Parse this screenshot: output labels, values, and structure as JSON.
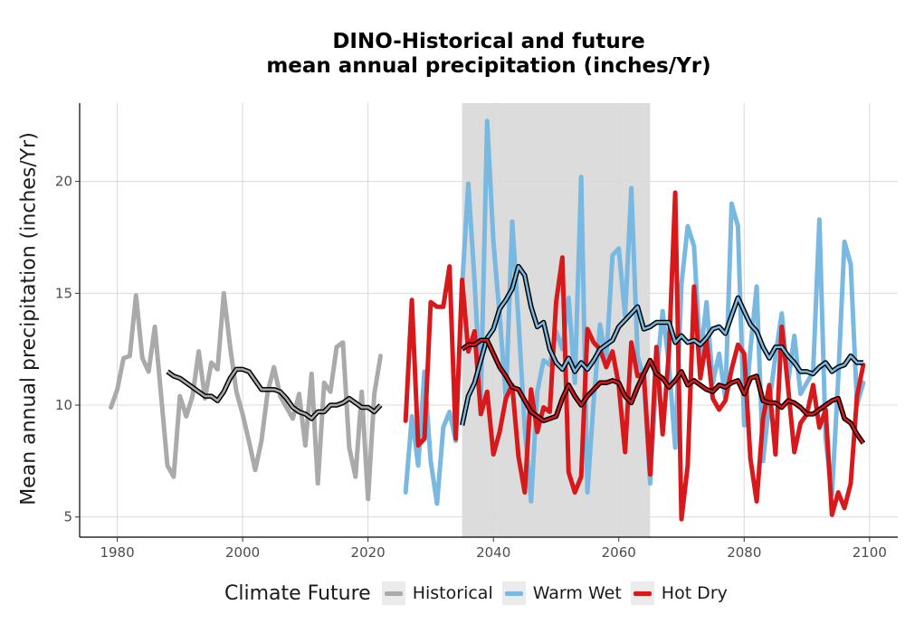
{
  "chart_data": {
    "type": "line",
    "title_line1": "DINO-Historical and future",
    "title_line2": "mean annual precipitation (inches/Yr)",
    "ylabel": "Mean annual precipitation (inches/Yr)",
    "xlim": [
      1974,
      2104.5
    ],
    "ylim": [
      4.1,
      23.5
    ],
    "x_ticks": [
      1980,
      2000,
      2020,
      2040,
      2060,
      2080,
      2100
    ],
    "y_ticks": [
      5,
      10,
      15,
      20
    ],
    "shaded_period": [
      2035,
      2065
    ],
    "grid": true,
    "legend": {
      "title": "Climate Future",
      "position": "bottom",
      "entries": [
        {
          "label": "Historical",
          "color": "#aaaaaa"
        },
        {
          "label": "Warm Wet",
          "color": "#79b8e0"
        },
        {
          "label": "Hot Dry",
          "color": "#d7191c"
        }
      ]
    },
    "series": [
      {
        "legend": "Historical",
        "color": "#aaaaaa",
        "x": [
          1979,
          1980,
          1981,
          1982,
          1983,
          1984,
          1985,
          1986,
          1987,
          1988,
          1989,
          1990,
          1991,
          1992,
          1993,
          1994,
          1995,
          1996,
          1997,
          1998,
          1999,
          2000,
          2001,
          2002,
          2003,
          2004,
          2005,
          2006,
          2007,
          2008,
          2009,
          2010,
          2011,
          2012,
          2013,
          2014,
          2015,
          2016,
          2017,
          2018,
          2019,
          2020,
          2021,
          2022
        ],
        "values": [
          9.9,
          10.7,
          12.1,
          12.2,
          14.9,
          12.1,
          11.5,
          13.5,
          10.4,
          7.3,
          6.8,
          10.4,
          9.5,
          10.4,
          12.4,
          10.3,
          11.9,
          11.6,
          15.0,
          12.6,
          10.6,
          9.6,
          8.4,
          7.1,
          8.4,
          10.6,
          11.7,
          10.4,
          9.9,
          9.4,
          10.5,
          8.2,
          11.4,
          6.5,
          11.0,
          10.6,
          12.6,
          12.8,
          8.1,
          6.8,
          10.6,
          5.8,
          10.5,
          12.2
        ],
        "smooth_x": [
          1988,
          1989,
          1990,
          1991,
          1992,
          1993,
          1994,
          1995,
          1996,
          1997,
          1998,
          1999,
          2000,
          2001,
          2002,
          2003,
          2004,
          2005,
          2006,
          2007,
          2008,
          2009,
          2010,
          2011,
          2012,
          2013,
          2014,
          2015,
          2016,
          2017,
          2018,
          2019,
          2020,
          2021,
          2022
        ],
        "smooth_values": [
          11.5,
          11.3,
          11.2,
          11.0,
          10.8,
          10.6,
          10.4,
          10.4,
          10.2,
          10.6,
          11.2,
          11.6,
          11.6,
          11.5,
          11.1,
          10.7,
          10.7,
          10.7,
          10.6,
          10.3,
          9.9,
          9.7,
          9.6,
          9.4,
          9.7,
          9.7,
          10.0,
          10.0,
          10.1,
          10.3,
          10.1,
          9.9,
          9.9,
          9.7,
          10.0
        ]
      },
      {
        "legend": "Warm Wet",
        "color": "#79b8e0",
        "x": [
          2026,
          2027,
          2028,
          2029,
          2030,
          2031,
          2032,
          2033,
          2034,
          2035,
          2036,
          2037,
          2038,
          2039,
          2040,
          2041,
          2042,
          2043,
          2044,
          2045,
          2046,
          2047,
          2048,
          2049,
          2050,
          2051,
          2052,
          2053,
          2054,
          2055,
          2056,
          2057,
          2058,
          2059,
          2060,
          2061,
          2062,
          2063,
          2064,
          2065,
          2066,
          2067,
          2068,
          2069,
          2070,
          2071,
          2072,
          2073,
          2074,
          2075,
          2076,
          2077,
          2078,
          2079,
          2080,
          2081,
          2082,
          2083,
          2084,
          2085,
          2086,
          2087,
          2088,
          2089,
          2090,
          2091,
          2092,
          2093,
          2094,
          2095,
          2096,
          2097,
          2098,
          2099
        ],
        "values": [
          6.1,
          9.5,
          7.3,
          11.5,
          7.5,
          5.6,
          9.0,
          9.7,
          8.4,
          15.3,
          19.9,
          15.5,
          10.3,
          22.7,
          17.3,
          14.0,
          10.3,
          18.2,
          13.8,
          9.0,
          5.7,
          10.6,
          12.0,
          11.8,
          13.3,
          12.5,
          14.8,
          11.0,
          20.2,
          6.1,
          10.2,
          13.6,
          12.0,
          16.7,
          17.0,
          14.0,
          19.7,
          12.2,
          11.2,
          6.5,
          11.3,
          14.2,
          11.8,
          8.1,
          15.4,
          18.0,
          17.1,
          12.1,
          14.6,
          11.0,
          12.3,
          10.3,
          19.0,
          18.0,
          9.1,
          12.5,
          15.3,
          7.5,
          10.1,
          12.2,
          14.1,
          11.0,
          13.1,
          10.5,
          11.0,
          11.5,
          18.3,
          8.5,
          6.0,
          11.2,
          17.3,
          16.3,
          10.0,
          11.0
        ],
        "smooth_x": [
          2035,
          2036,
          2037,
          2038,
          2039,
          2040,
          2041,
          2042,
          2043,
          2044,
          2045,
          2046,
          2047,
          2048,
          2049,
          2050,
          2051,
          2052,
          2053,
          2054,
          2055,
          2056,
          2057,
          2058,
          2059,
          2060,
          2061,
          2062,
          2063,
          2064,
          2065,
          2066,
          2067,
          2068,
          2069,
          2070,
          2071,
          2072,
          2073,
          2074,
          2075,
          2076,
          2077,
          2078,
          2079,
          2080,
          2081,
          2082,
          2083,
          2084,
          2085,
          2086,
          2087,
          2088,
          2089,
          2090,
          2091,
          2092,
          2093,
          2094,
          2095,
          2096,
          2097,
          2098,
          2099
        ],
        "smooth_values": [
          9.1,
          10.4,
          11.0,
          12.0,
          13.0,
          13.4,
          14.3,
          14.7,
          15.2,
          16.2,
          15.8,
          14.4,
          13.5,
          13.7,
          12.5,
          11.9,
          11.6,
          12.1,
          11.5,
          11.9,
          11.6,
          12.0,
          12.5,
          12.7,
          12.9,
          13.5,
          13.8,
          14.1,
          14.4,
          13.4,
          13.5,
          13.7,
          13.7,
          13.7,
          12.8,
          13.1,
          12.8,
          12.9,
          12.7,
          13.0,
          13.4,
          13.5,
          13.2,
          14.0,
          14.8,
          14.2,
          13.6,
          13.3,
          12.6,
          12.1,
          12.6,
          12.6,
          12.2,
          11.9,
          11.5,
          11.5,
          11.4,
          11.7,
          11.9,
          11.5,
          11.7,
          11.8,
          12.2,
          11.9,
          11.9
        ]
      },
      {
        "legend": "Hot Dry",
        "color": "#d7191c",
        "x": [
          2026,
          2027,
          2028,
          2029,
          2030,
          2031,
          2032,
          2033,
          2034,
          2035,
          2036,
          2037,
          2038,
          2039,
          2040,
          2041,
          2042,
          2043,
          2044,
          2045,
          2046,
          2047,
          2048,
          2049,
          2050,
          2051,
          2052,
          2053,
          2054,
          2055,
          2056,
          2057,
          2058,
          2059,
          2060,
          2061,
          2062,
          2063,
          2064,
          2065,
          2066,
          2067,
          2068,
          2069,
          2070,
          2071,
          2072,
          2073,
          2074,
          2075,
          2076,
          2077,
          2078,
          2079,
          2080,
          2081,
          2082,
          2083,
          2084,
          2085,
          2086,
          2087,
          2088,
          2089,
          2090,
          2091,
          2092,
          2093,
          2094,
          2095,
          2096,
          2097,
          2098,
          2099
        ],
        "values": [
          9.3,
          14.7,
          8.2,
          8.5,
          14.6,
          14.4,
          14.4,
          16.2,
          8.5,
          15.6,
          12.4,
          13.3,
          9.6,
          10.6,
          7.8,
          8.8,
          10.3,
          10.9,
          7.7,
          6.1,
          10.7,
          8.8,
          9.9,
          9.7,
          14.6,
          16.6,
          7.0,
          6.1,
          6.8,
          13.4,
          12.8,
          12.5,
          11.7,
          12.4,
          10.9,
          7.9,
          12.8,
          11.3,
          11.4,
          6.9,
          12.6,
          8.7,
          12.4,
          19.5,
          4.9,
          7.3,
          15.3,
          11.2,
          12.9,
          10.3,
          9.8,
          10.2,
          11.6,
          12.7,
          12.3,
          7.6,
          5.7,
          9.4,
          10.9,
          7.8,
          13.5,
          10.8,
          7.9,
          9.2,
          9.6,
          10.9,
          9.0,
          9.8,
          5.1,
          6.1,
          5.4,
          6.5,
          10.4,
          11.8
        ],
        "smooth_x": [
          2035,
          2036,
          2037,
          2038,
          2039,
          2040,
          2041,
          2042,
          2043,
          2044,
          2045,
          2046,
          2047,
          2048,
          2049,
          2050,
          2051,
          2052,
          2053,
          2054,
          2055,
          2056,
          2057,
          2058,
          2059,
          2060,
          2061,
          2062,
          2063,
          2064,
          2065,
          2066,
          2067,
          2068,
          2069,
          2070,
          2071,
          2072,
          2073,
          2074,
          2075,
          2076,
          2077,
          2078,
          2079,
          2080,
          2081,
          2082,
          2083,
          2084,
          2085,
          2086,
          2087,
          2088,
          2089,
          2090,
          2091,
          2092,
          2093,
          2094,
          2095,
          2096,
          2097,
          2098,
          2099
        ],
        "smooth_values": [
          12.5,
          12.7,
          12.7,
          12.9,
          12.9,
          12.3,
          11.7,
          11.3,
          10.8,
          10.7,
          10.2,
          9.7,
          9.5,
          9.3,
          9.4,
          9.5,
          10.3,
          10.9,
          10.4,
          10.0,
          10.4,
          10.7,
          11.0,
          11.0,
          11.1,
          11.0,
          10.4,
          10.1,
          10.8,
          11.4,
          12.0,
          11.4,
          11.2,
          10.8,
          11.1,
          11.5,
          10.9,
          11.1,
          10.9,
          10.7,
          10.6,
          10.9,
          10.8,
          11.0,
          11.1,
          10.5,
          11.2,
          11.3,
          10.2,
          10.1,
          10.1,
          9.9,
          10.2,
          10.1,
          9.9,
          9.6,
          9.6,
          9.8,
          10.0,
          10.2,
          10.3,
          9.4,
          9.2,
          8.7,
          8.3,
          8.2,
          8.4,
          8.5,
          8.6
        ]
      }
    ]
  }
}
